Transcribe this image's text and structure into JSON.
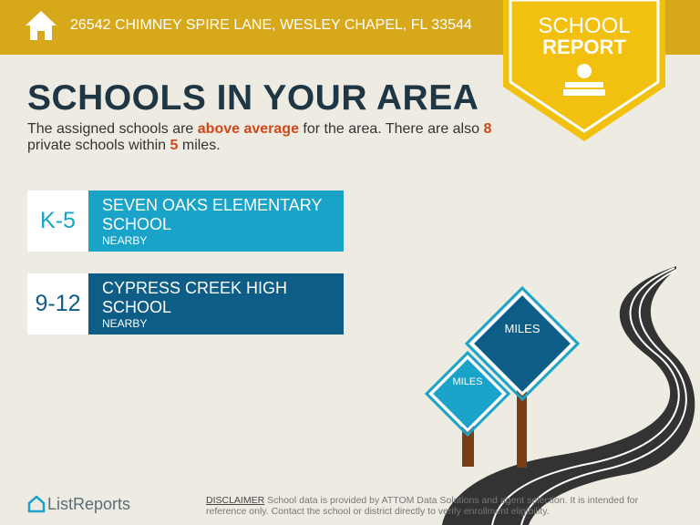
{
  "header": {
    "address": "26542 CHIMNEY SPIRE LANE, WESLEY CHAPEL, FL 33544"
  },
  "badge": {
    "line1": "SCHOOL",
    "line2": "REPORT"
  },
  "title": "SCHOOLS IN YOUR AREA",
  "description": {
    "parts": [
      "The assigned schools are ",
      "above average",
      " for the area. There are also ",
      8,
      " private schools within ",
      5,
      " miles."
    ]
  },
  "schools": [
    {
      "grades": "K-5",
      "name": "SEVEN OAKS ELEMENTARY SCHOOL",
      "distance": "NEARBY"
    },
    {
      "grades": "9-12",
      "name": "CYPRESS CREEK HIGH SCHOOL",
      "distance": "NEARBY"
    }
  ],
  "signs": [
    "MILES",
    "MILES"
  ],
  "footer": {
    "brand": "ListReports",
    "disclaimer_label": "DISCLAIMER",
    "disclaimer": " School data is provided by ATTOM Data Solutions and agent selection. It is intended for reference only. Contact the school or district directly to verify enrollment eligibility."
  }
}
